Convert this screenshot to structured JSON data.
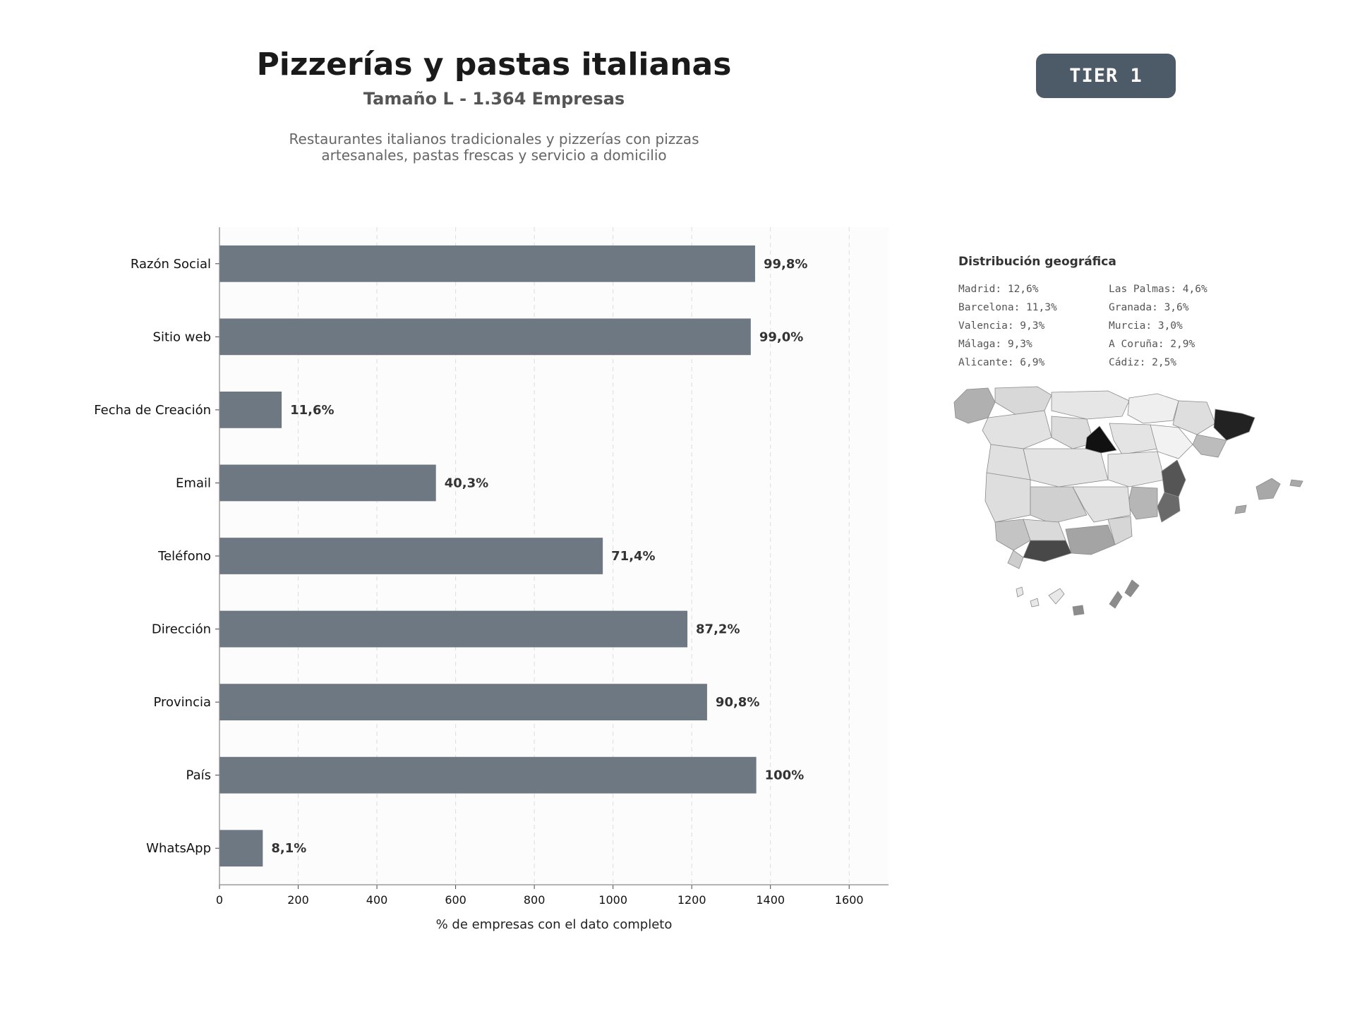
{
  "header": {
    "title": "Pizzerías y pastas italianas",
    "subtitle": "Tamaño L - 1.364 Empresas",
    "description_line1": "Restaurantes italianos tradicionales y pizzerías con pizzas",
    "description_line2": "artesanales, pastas frescas y servicio a domicilio",
    "tier": "TIER 1"
  },
  "colors": {
    "bar": "#6e7882",
    "badge": "#4d5a68",
    "plot_bg": "#fcfcfc"
  },
  "chart_data": {
    "type": "bar",
    "orientation": "horizontal",
    "categories": [
      "Razón Social",
      "Sitio web",
      "Fecha de Creación",
      "Email",
      "Teléfono",
      "Dirección",
      "Provincia",
      "País",
      "WhatsApp"
    ],
    "values": [
      1361,
      1350,
      158,
      550,
      974,
      1189,
      1239,
      1364,
      110
    ],
    "data_labels": [
      "99,8%",
      "99,0%",
      "11,6%",
      "40,3%",
      "71,4%",
      "87,2%",
      "90,8%",
      "100%",
      "8,1%"
    ],
    "xlabel": "% de empresas con el dato completo",
    "xlim": [
      0,
      1700
    ],
    "xticks": [
      0,
      200,
      400,
      600,
      800,
      1000,
      1200,
      1400,
      1600
    ],
    "grid": "vertical dashed"
  },
  "geo": {
    "title": "Distribución geográfica",
    "col1": [
      "Madrid: 12,6%",
      "Barcelona: 11,3%",
      "Valencia: 9,3%",
      "Málaga: 9,3%",
      "Alicante: 6,9%"
    ],
    "col2": [
      "Las Palmas: 4,6%",
      "Granada: 3,6%",
      "Murcia: 3,0%",
      "A Coruña: 2,9%",
      "Cádiz: 2,5%"
    ]
  }
}
